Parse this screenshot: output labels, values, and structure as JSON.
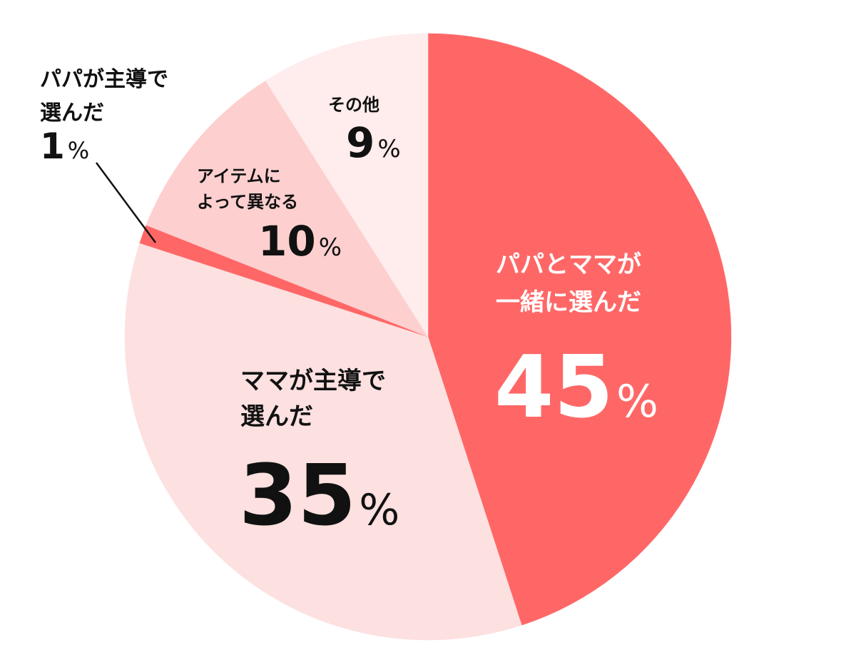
{
  "chart_data": {
    "type": "pie",
    "start": "top",
    "direction": "clockwise",
    "slices": [
      {
        "label_lines": [
          "パパとママが",
          "一緒に選んだ"
        ],
        "value": 45,
        "value_text": "45",
        "color": "#ff6767",
        "text_color": "#ffffff"
      },
      {
        "label_lines": [
          "ママが主導で",
          "選んだ"
        ],
        "value": 35,
        "value_text": "35",
        "color": "#fde0e0",
        "text_color": "#111111"
      },
      {
        "label_lines": [
          "パパが主導で",
          "選んだ"
        ],
        "value": 1,
        "value_text": "1",
        "color": "#ff6767",
        "text_color": "#111111"
      },
      {
        "label_lines": [
          "アイテムに",
          "よって異なる"
        ],
        "value": 10,
        "value_text": "10",
        "color": "#fdcfcf",
        "text_color": "#111111"
      },
      {
        "label_lines": [
          "その他"
        ],
        "value": 9,
        "value_text": "9",
        "color": "#ffecec",
        "text_color": "#111111"
      }
    ],
    "unit": "%"
  }
}
